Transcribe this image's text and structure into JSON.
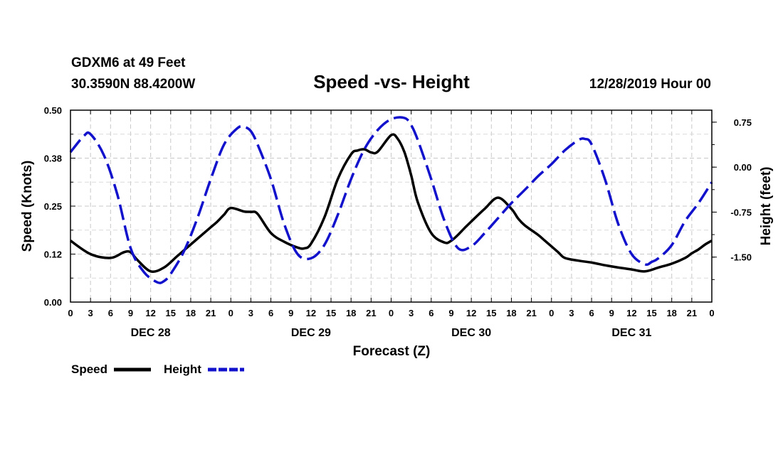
{
  "header": {
    "station": "GDXM6 at 49 Feet",
    "location": "30.3590N 88.4200W",
    "title": "Speed -vs- Height",
    "datetime": "12/28/2019 Hour 00"
  },
  "chart_data": {
    "type": "line",
    "title": "Speed -vs- Height",
    "xlabel": "Forecast (Z)",
    "ylabel_left": "Speed (Knots)",
    "ylabel_right": "Height (feet)",
    "x_unit": "hours since 12/28 00Z",
    "xlim": [
      0,
      96
    ],
    "ylim_left": [
      0,
      0.5
    ],
    "ylim_right": [
      -2.25,
      0.95
    ],
    "left_ticks": [
      "0.00",
      "0.12",
      "0.25",
      "0.38",
      "0.50"
    ],
    "left_tick_values": [
      0,
      0.125,
      0.25,
      0.375,
      0.5
    ],
    "right_ticks": [
      "0.75",
      "0.00",
      "-0.75",
      "-1.50"
    ],
    "right_tick_values": [
      0.75,
      0,
      -0.75,
      -1.5
    ],
    "x_tick_labels": [
      "0",
      "3",
      "6",
      "9",
      "12",
      "15",
      "18",
      "21",
      "0",
      "3",
      "6",
      "9",
      "12",
      "15",
      "18",
      "21",
      "0",
      "3",
      "6",
      "9",
      "12",
      "15",
      "18",
      "21",
      "0",
      "3",
      "6",
      "9",
      "12",
      "15",
      "18",
      "21",
      "0"
    ],
    "day_labels": [
      {
        "label": "DEC 28",
        "hour": 12
      },
      {
        "label": "DEC 29",
        "hour": 36
      },
      {
        "label": "DEC 30",
        "hour": 60
      },
      {
        "label": "DEC 31",
        "hour": 84
      }
    ],
    "legend": [
      {
        "name": "Speed",
        "color": "#000000",
        "style": "solid"
      },
      {
        "name": "Height",
        "color": "#1212cc",
        "style": "dashed"
      }
    ],
    "grid": true,
    "series": [
      {
        "name": "Speed",
        "axis": "left",
        "color": "#000000",
        "x": [
          0,
          3,
          6,
          8,
          9,
          10,
          12,
          14,
          16,
          18,
          20,
          21,
          22,
          23,
          24,
          26,
          27,
          28,
          30,
          32,
          34,
          35,
          36,
          38,
          40,
          42,
          43,
          44,
          45,
          46,
          48,
          49,
          50,
          51,
          52,
          54,
          56,
          57,
          58,
          59,
          60,
          62,
          64,
          66,
          67,
          68,
          70,
          71,
          72,
          73,
          74,
          76,
          78,
          80,
          82,
          84,
          86,
          88,
          90,
          92,
          93,
          94,
          95,
          96
        ],
        "values": [
          0.16,
          0.125,
          0.115,
          0.13,
          0.13,
          0.11,
          0.08,
          0.09,
          0.12,
          0.15,
          0.18,
          0.195,
          0.21,
          0.228,
          0.245,
          0.236,
          0.235,
          0.23,
          0.18,
          0.157,
          0.142,
          0.14,
          0.152,
          0.22,
          0.32,
          0.385,
          0.395,
          0.398,
          0.39,
          0.392,
          0.435,
          0.425,
          0.39,
          0.33,
          0.26,
          0.18,
          0.155,
          0.16,
          0.175,
          0.193,
          0.21,
          0.243,
          0.272,
          0.243,
          0.218,
          0.2,
          0.175,
          0.16,
          0.145,
          0.13,
          0.115,
          0.108,
          0.103,
          0.096,
          0.09,
          0.085,
          0.08,
          0.09,
          0.1,
          0.115,
          0.127,
          0.137,
          0.15,
          0.16
        ]
      },
      {
        "name": "Height",
        "axis": "right",
        "color": "#1212cc",
        "x": [
          0,
          2,
          3,
          5,
          7,
          9,
          11,
          13,
          14,
          15,
          17,
          19,
          21,
          23,
          25,
          26,
          27,
          28,
          30,
          32,
          34,
          36,
          38,
          40,
          42,
          44,
          46,
          48,
          50,
          51,
          52,
          54,
          56,
          58,
          60,
          62,
          64,
          66,
          68,
          70,
          72,
          74,
          76,
          77,
          78,
          80,
          82,
          84,
          86,
          87,
          88,
          90,
          92,
          94,
          96
        ],
        "values": [
          0.25,
          0.52,
          0.55,
          0.2,
          -0.45,
          -1.35,
          -1.75,
          -1.92,
          -1.9,
          -1.78,
          -1.4,
          -0.85,
          -0.2,
          0.38,
          0.65,
          0.67,
          0.6,
          0.38,
          -0.2,
          -0.95,
          -1.45,
          -1.52,
          -1.3,
          -0.8,
          -0.2,
          0.3,
          0.62,
          0.8,
          0.82,
          0.7,
          0.45,
          -0.2,
          -0.9,
          -1.35,
          -1.32,
          -1.1,
          -0.85,
          -0.6,
          -0.38,
          -0.15,
          0.05,
          0.28,
          0.45,
          0.47,
          0.38,
          -0.2,
          -0.95,
          -1.45,
          -1.62,
          -1.58,
          -1.52,
          -1.3,
          -0.9,
          -0.6,
          -0.25
        ]
      }
    ]
  }
}
